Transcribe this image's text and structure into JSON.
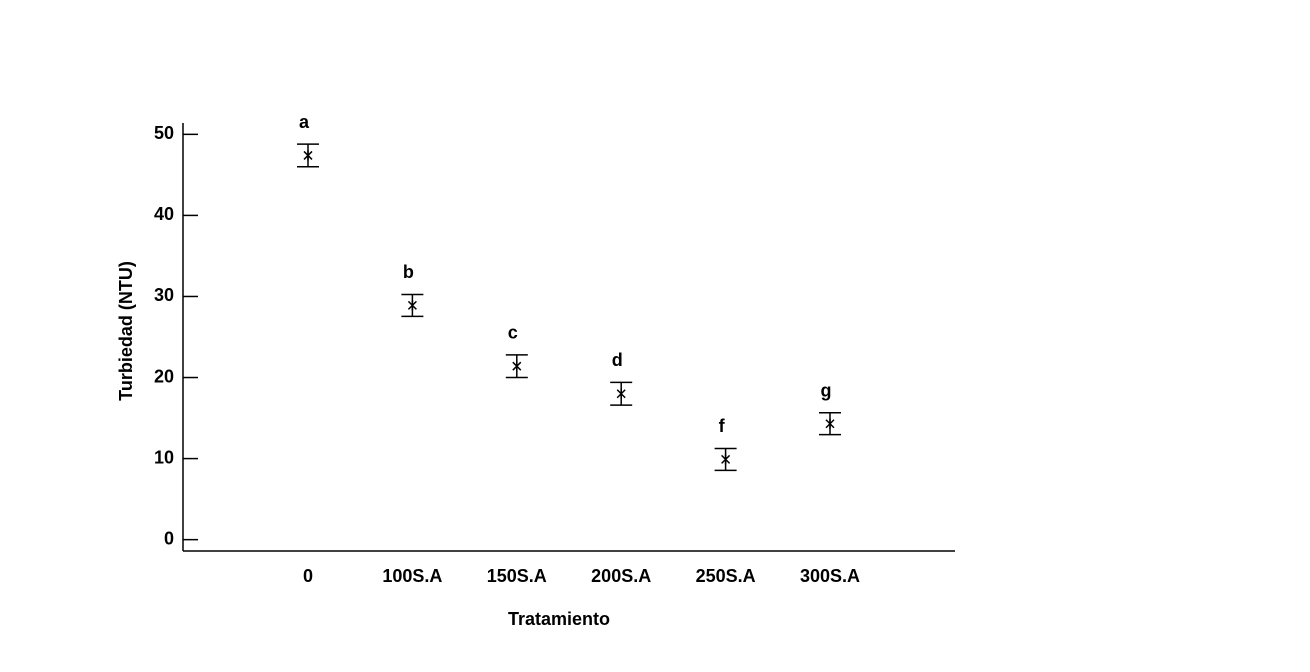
{
  "chart_data": {
    "type": "errorbar",
    "x_label": "Tratamiento",
    "y_label": "Turbiedad (NTU)",
    "categories": [
      "0",
      "100S.A",
      "150S.A",
      "200S.A",
      "250S.A",
      "300S.A"
    ],
    "values": [
      47.4,
      28.9,
      21.4,
      18.0,
      9.9,
      14.3
    ],
    "errors": [
      1.4,
      1.35,
      1.4,
      1.4,
      1.35,
      1.35
    ],
    "annotations": [
      "a",
      "b",
      "c",
      "d",
      "f",
      "g"
    ],
    "color": "#000000",
    "ylim": [
      -1.4,
      51.4
    ],
    "yticks": [
      0,
      10,
      20,
      30,
      40,
      50
    ],
    "grid": false
  }
}
